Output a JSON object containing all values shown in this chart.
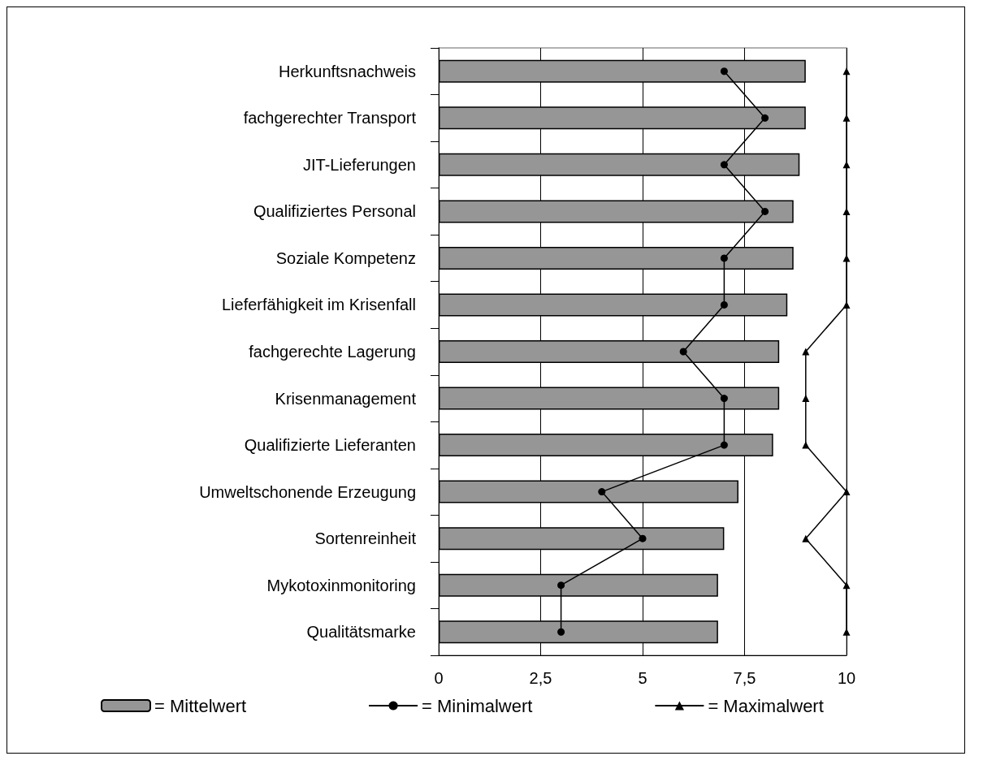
{
  "chart_data": {
    "type": "bar",
    "orientation": "horizontal",
    "categories": [
      "Herkunftsnachweis",
      "fachgerechter Transport",
      "JIT-Lieferungen",
      "Qualifiziertes Personal",
      "Soziale Kompetenz",
      "Lieferfähigkeit im Krisenfall",
      "fachgerechte Lagerung",
      "Krisenmanagement",
      "Qualifizierte Lieferanten",
      "Umweltschonende Erzeugung",
      "Sortenreinheit",
      "Mykotoxinmonitoring",
      "Qualitätsmarke"
    ],
    "series": [
      {
        "name": "= Mittelwert",
        "color": "#969696",
        "values": [
          9.0,
          9.0,
          8.85,
          8.7,
          8.7,
          8.55,
          8.35,
          8.35,
          8.2,
          7.35,
          7.0,
          6.85,
          6.85
        ]
      },
      {
        "name": "= Minimalwert",
        "type": "line",
        "marker": "circle",
        "color": "#000000",
        "values": [
          7,
          8,
          7,
          8,
          7,
          7,
          6,
          7,
          7,
          4,
          5,
          3,
          3
        ]
      },
      {
        "name": "= Maximalwert",
        "type": "line",
        "marker": "triangle",
        "color": "#000000",
        "values": [
          10,
          10,
          10,
          10,
          10,
          10,
          9,
          9,
          9,
          10,
          9,
          10,
          10
        ]
      }
    ],
    "xlim": [
      0,
      10
    ],
    "xticks": [
      0,
      {
        "value": 2.5,
        "label": "2,5"
      },
      5,
      {
        "value": 7.5,
        "label": "7,5"
      },
      10
    ],
    "grid": "x",
    "legend": "bottom"
  }
}
